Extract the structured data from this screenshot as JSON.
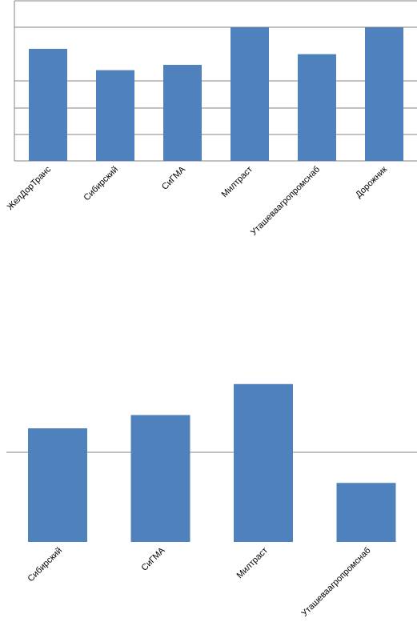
{
  "colors": {
    "bar": "#4f81bd",
    "grid": "#868686",
    "axis": "#868686",
    "background": "#ffffff"
  },
  "chart_data": [
    {
      "type": "bar",
      "categories": [
        "ЖелДорТранс",
        "Сибирский",
        "СиГМА",
        "Милтраст",
        "Уташеваагропромснаб",
        "Дорожник"
      ],
      "values": [
        84,
        68,
        72,
        100,
        80,
        100
      ],
      "ylim": [
        0,
        120
      ],
      "grid": true,
      "legend": "none"
    },
    {
      "type": "bar",
      "categories": [
        "Сибирский",
        "СиГМА",
        "Милтраст",
        "Уташеваагропромснаб"
      ],
      "values": [
        77,
        86,
        107,
        40
      ],
      "ylim": [
        0,
        134
      ],
      "grid": true,
      "legend": "none"
    }
  ]
}
